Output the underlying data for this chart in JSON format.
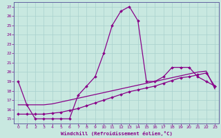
{
  "xlabel": "Windchill (Refroidissement éolien,°C)",
  "background_color": "#c8e8e0",
  "grid_color": "#a8d0cc",
  "line_color": "#880088",
  "spine_color": "#6060a0",
  "xlim": [
    -0.5,
    23.5
  ],
  "ylim": [
    14.5,
    27.5
  ],
  "yticks": [
    15,
    16,
    17,
    18,
    19,
    20,
    21,
    22,
    23,
    24,
    25,
    26,
    27
  ],
  "xticks": [
    0,
    1,
    2,
    3,
    4,
    5,
    6,
    7,
    8,
    9,
    10,
    11,
    12,
    13,
    14,
    15,
    16,
    17,
    18,
    19,
    20,
    21,
    22,
    23
  ],
  "series1_x": [
    0,
    1,
    2,
    3,
    4,
    5,
    6,
    7,
    8,
    9,
    10,
    11,
    12,
    13,
    14,
    15,
    16,
    17,
    18,
    19,
    20,
    21,
    22,
    23
  ],
  "series1_y": [
    19.0,
    16.5,
    15.0,
    15.0,
    15.0,
    15.0,
    15.0,
    17.5,
    18.5,
    19.5,
    22.0,
    25.0,
    26.5,
    27.0,
    25.5,
    19.0,
    19.0,
    19.5,
    20.5,
    20.5,
    20.5,
    19.5,
    19.0,
    18.5
  ],
  "series2_x": [
    0,
    1,
    2,
    3,
    4,
    5,
    6,
    7,
    8,
    9,
    10,
    11,
    12,
    13,
    14,
    15,
    16,
    17,
    18,
    19,
    20,
    21,
    22,
    23
  ],
  "series2_y": [
    15.5,
    15.5,
    15.5,
    15.5,
    15.6,
    15.7,
    15.9,
    16.1,
    16.4,
    16.7,
    17.0,
    17.3,
    17.6,
    17.9,
    18.1,
    18.3,
    18.5,
    18.8,
    19.1,
    19.4,
    19.5,
    19.7,
    19.9,
    18.5
  ],
  "series3_x": [
    0,
    1,
    2,
    3,
    4,
    5,
    6,
    7,
    8,
    9,
    10,
    11,
    12,
    13,
    14,
    15,
    16,
    17,
    18,
    19,
    20,
    21,
    22,
    23
  ],
  "series3_y": [
    16.5,
    16.5,
    16.5,
    16.5,
    16.6,
    16.8,
    17.0,
    17.2,
    17.4,
    17.6,
    17.8,
    18.0,
    18.2,
    18.4,
    18.6,
    18.8,
    19.0,
    19.2,
    19.4,
    19.6,
    19.8,
    20.0,
    20.1,
    18.2
  ]
}
